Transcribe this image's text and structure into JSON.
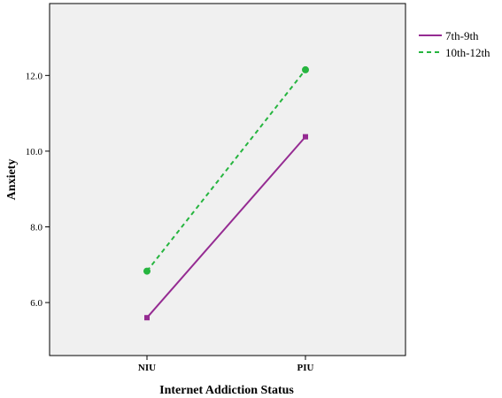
{
  "chart_data": {
    "type": "line",
    "title": "",
    "xlabel": "Internet Addiction Status",
    "ylabel": "Anxiety",
    "categories": [
      "NIU",
      "PIU"
    ],
    "ylim": [
      4.6,
      13.9
    ],
    "yticks": [
      "6.0",
      "8.0",
      "10.0",
      "12.0"
    ],
    "legend_position": "right",
    "grid": false,
    "background": "#f0f0f0",
    "series": [
      {
        "name": "7th-9th",
        "values": [
          5.6,
          10.38
        ],
        "color": "#952b92",
        "dash": "solid",
        "marker": "square"
      },
      {
        "name": "10th-12th",
        "values": [
          6.83,
          12.15
        ],
        "color": "#26b53f",
        "dash": "dashed",
        "marker": "circle"
      }
    ]
  }
}
